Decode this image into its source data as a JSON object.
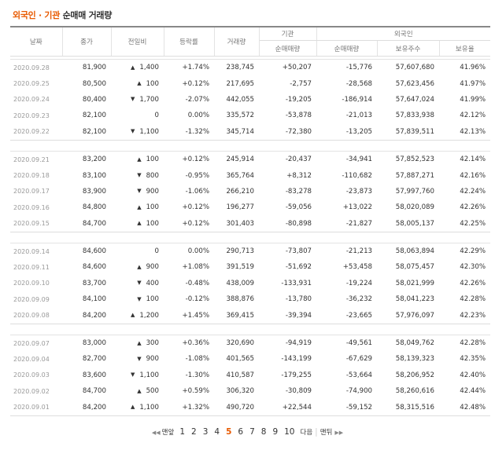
{
  "title": {
    "part1": "외국인 · 기관",
    "part2": "순매매 거래량"
  },
  "headers": {
    "date": "날짜",
    "close": "종가",
    "change": "전일비",
    "rate": "등락률",
    "volume": "거래량",
    "inst_group": "기관",
    "inst_net": "순매매량",
    "foreign_group": "외국인",
    "foreign_net": "순매매량",
    "foreign_hold": "보유주수",
    "foreign_ratio": "보유율"
  },
  "rows": [
    {
      "date": "2020.09.28",
      "close": "81,900",
      "dir": "up",
      "change": "1,400",
      "rate": "+1.74%",
      "volume": "238,745",
      "inst": "+50,207",
      "foreign": "-15,776",
      "hold": "57,607,680",
      "ratio": "41.96%"
    },
    {
      "date": "2020.09.25",
      "close": "80,500",
      "dir": "up",
      "change": "100",
      "rate": "+0.12%",
      "volume": "217,695",
      "inst": "-2,757",
      "foreign": "-28,568",
      "hold": "57,623,456",
      "ratio": "41.97%"
    },
    {
      "date": "2020.09.24",
      "close": "80,400",
      "dir": "down",
      "change": "1,700",
      "rate": "-2.07%",
      "volume": "442,055",
      "inst": "-19,205",
      "foreign": "-186,914",
      "hold": "57,647,024",
      "ratio": "41.99%"
    },
    {
      "date": "2020.09.23",
      "close": "82,100",
      "dir": "zero",
      "change": "0",
      "rate": "0.00%",
      "volume": "335,572",
      "inst": "-53,878",
      "foreign": "-21,013",
      "hold": "57,833,938",
      "ratio": "42.12%"
    },
    {
      "date": "2020.09.22",
      "close": "82,100",
      "dir": "down",
      "change": "1,100",
      "rate": "-1.32%",
      "volume": "345,714",
      "inst": "-72,380",
      "foreign": "-13,205",
      "hold": "57,839,511",
      "ratio": "42.13%"
    },
    {
      "date": "2020.09.21",
      "close": "83,200",
      "dir": "up",
      "change": "100",
      "rate": "+0.12%",
      "volume": "245,914",
      "inst": "-20,437",
      "foreign": "-34,941",
      "hold": "57,852,523",
      "ratio": "42.14%"
    },
    {
      "date": "2020.09.18",
      "close": "83,100",
      "dir": "down",
      "change": "800",
      "rate": "-0.95%",
      "volume": "365,764",
      "inst": "+8,312",
      "foreign": "-110,682",
      "hold": "57,887,271",
      "ratio": "42.16%"
    },
    {
      "date": "2020.09.17",
      "close": "83,900",
      "dir": "down",
      "change": "900",
      "rate": "-1.06%",
      "volume": "266,210",
      "inst": "-83,278",
      "foreign": "-23,873",
      "hold": "57,997,760",
      "ratio": "42.24%"
    },
    {
      "date": "2020.09.16",
      "close": "84,800",
      "dir": "up",
      "change": "100",
      "rate": "+0.12%",
      "volume": "196,277",
      "inst": "-59,056",
      "foreign": "+13,022",
      "hold": "58,020,089",
      "ratio": "42.26%"
    },
    {
      "date": "2020.09.15",
      "close": "84,700",
      "dir": "up",
      "change": "100",
      "rate": "+0.12%",
      "volume": "301,403",
      "inst": "-80,898",
      "foreign": "-21,827",
      "hold": "58,005,137",
      "ratio": "42.25%"
    },
    {
      "date": "2020.09.14",
      "close": "84,600",
      "dir": "zero",
      "change": "0",
      "rate": "0.00%",
      "volume": "290,713",
      "inst": "-73,807",
      "foreign": "-21,213",
      "hold": "58,063,894",
      "ratio": "42.29%"
    },
    {
      "date": "2020.09.11",
      "close": "84,600",
      "dir": "up",
      "change": "900",
      "rate": "+1.08%",
      "volume": "391,519",
      "inst": "-51,692",
      "foreign": "+53,458",
      "hold": "58,075,457",
      "ratio": "42.30%"
    },
    {
      "date": "2020.09.10",
      "close": "83,700",
      "dir": "down",
      "change": "400",
      "rate": "-0.48%",
      "volume": "438,009",
      "inst": "-133,931",
      "foreign": "-19,224",
      "hold": "58,021,999",
      "ratio": "42.26%"
    },
    {
      "date": "2020.09.09",
      "close": "84,100",
      "dir": "down",
      "change": "100",
      "rate": "-0.12%",
      "volume": "388,876",
      "inst": "-13,780",
      "foreign": "-36,232",
      "hold": "58,041,223",
      "ratio": "42.28%"
    },
    {
      "date": "2020.09.08",
      "close": "84,200",
      "dir": "up",
      "change": "1,200",
      "rate": "+1.45%",
      "volume": "369,415",
      "inst": "-39,394",
      "foreign": "-23,665",
      "hold": "57,976,097",
      "ratio": "42.23%"
    },
    {
      "date": "2020.09.07",
      "close": "83,000",
      "dir": "up",
      "change": "300",
      "rate": "+0.36%",
      "volume": "320,690",
      "inst": "-94,919",
      "foreign": "-49,561",
      "hold": "58,049,762",
      "ratio": "42.28%"
    },
    {
      "date": "2020.09.04",
      "close": "82,700",
      "dir": "down",
      "change": "900",
      "rate": "-1.08%",
      "volume": "401,565",
      "inst": "-143,199",
      "foreign": "-67,629",
      "hold": "58,139,323",
      "ratio": "42.35%"
    },
    {
      "date": "2020.09.03",
      "close": "83,600",
      "dir": "down",
      "change": "1,100",
      "rate": "-1.30%",
      "volume": "410,587",
      "inst": "-179,255",
      "foreign": "-53,664",
      "hold": "58,206,952",
      "ratio": "42.40%"
    },
    {
      "date": "2020.09.02",
      "close": "84,700",
      "dir": "up",
      "change": "500",
      "rate": "+0.59%",
      "volume": "306,320",
      "inst": "-30,809",
      "foreign": "-74,900",
      "hold": "58,260,616",
      "ratio": "42.44%"
    },
    {
      "date": "2020.09.01",
      "close": "84,200",
      "dir": "up",
      "change": "1,100",
      "rate": "+1.32%",
      "volume": "490,720",
      "inst": "+22,544",
      "foreign": "-59,152",
      "hold": "58,315,516",
      "ratio": "42.48%"
    }
  ],
  "pager": {
    "first": "맨앞",
    "pages": [
      "1",
      "2",
      "3",
      "4",
      "5",
      "6",
      "7",
      "8",
      "9",
      "10"
    ],
    "current": "5",
    "next": "다음",
    "last": "맨뒤"
  },
  "colors": {
    "up": "#e8111a",
    "down": "#1a5fc8",
    "accent": "#e85a00"
  }
}
